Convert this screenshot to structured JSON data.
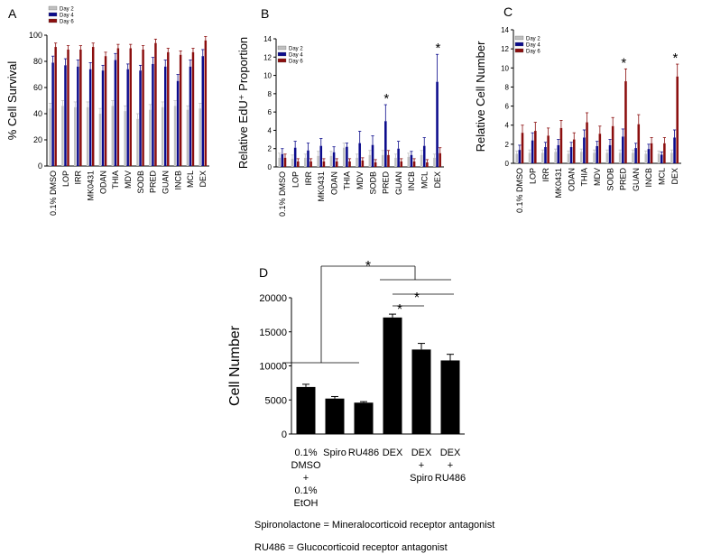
{
  "colors": {
    "day2": "#c0c0c0",
    "day4": "#0b0b8c",
    "day6": "#8b0e0e",
    "bar_d": "#000000",
    "axis": "#000000"
  },
  "chart_data": [
    {
      "panel": "A",
      "type": "bar",
      "title": "",
      "xlabel": "",
      "ylabel": "% Cell Survival",
      "ylim": [
        0,
        100
      ],
      "yticks": [
        0,
        20,
        40,
        60,
        80,
        100
      ],
      "legend": "top-left",
      "categories": [
        "0.1% DMSO",
        "LOP",
        "IRR",
        "MK0431",
        "ODAN",
        "THIA",
        "MDV",
        "SODB",
        "PRED",
        "GUAN",
        "INCB",
        "MCL",
        "DEX"
      ],
      "series": [
        {
          "name": "Day 2",
          "color": "#c0c0c0",
          "values": [
            44,
            46,
            45,
            45,
            40,
            46,
            42,
            36,
            43,
            45,
            46,
            43,
            44
          ],
          "errors": [
            4,
            4,
            4,
            4,
            4,
            4,
            4,
            4,
            4,
            4,
            4,
            3,
            4
          ]
        },
        {
          "name": "Day 4",
          "color": "#0b0b8c",
          "values": [
            79,
            77,
            76,
            74,
            73,
            81,
            74,
            73,
            78,
            76,
            65,
            76,
            84
          ],
          "errors": [
            5,
            5,
            5,
            5,
            4,
            5,
            4,
            4,
            5,
            5,
            5,
            5,
            5
          ]
        },
        {
          "name": "Day 6",
          "color": "#8b0e0e",
          "values": [
            91,
            89,
            89,
            91,
            84,
            90,
            90,
            89,
            94,
            87,
            85,
            87,
            96
          ],
          "errors": [
            3,
            3,
            3,
            3,
            3,
            3,
            3,
            3,
            3,
            3,
            3,
            3,
            3
          ]
        }
      ]
    },
    {
      "panel": "B",
      "type": "bar",
      "title": "",
      "xlabel": "",
      "ylabel": "Relative EdU⁺ Proportion",
      "ylim": [
        0,
        14
      ],
      "yticks": [
        0,
        2,
        4,
        6,
        8,
        10,
        12,
        14
      ],
      "legend": "top-left",
      "categories": [
        "0.1% DMSO",
        "LOP",
        "IRR",
        "MK0431",
        "ODAN",
        "THIA",
        "MDV",
        "SODB",
        "PRED",
        "GUAN",
        "INCB",
        "MCL",
        "DEX"
      ],
      "series": [
        {
          "name": "Day 2",
          "color": "#c0c0c0",
          "values": [
            1.0,
            0.9,
            1.0,
            1.2,
            1.2,
            2.1,
            1.0,
            1.3,
            1.3,
            1.0,
            1.1,
            1.3,
            1.0
          ],
          "errors": [
            0.5,
            0.4,
            0.4,
            0.5,
            0.5,
            0.5,
            0.4,
            0.5,
            0.5,
            0.4,
            0.4,
            0.5,
            0.4
          ]
        },
        {
          "name": "Day 4",
          "color": "#0b0b8c",
          "values": [
            1.4,
            2.1,
            1.8,
            2.3,
            1.6,
            2.2,
            2.6,
            2.4,
            5.0,
            2.0,
            1.3,
            2.3,
            9.3
          ],
          "errors": [
            0.6,
            0.7,
            0.8,
            0.8,
            0.6,
            0.4,
            1.3,
            1.0,
            1.8,
            0.8,
            0.4,
            0.9,
            3.0
          ]
        },
        {
          "name": "Day 6",
          "color": "#8b0e0e",
          "values": [
            1.0,
            0.6,
            0.6,
            0.6,
            0.6,
            0.6,
            0.7,
            0.5,
            1.3,
            0.6,
            0.6,
            0.5,
            1.5
          ],
          "errors": [
            0.4,
            0.3,
            0.3,
            0.3,
            0.3,
            0.3,
            0.3,
            0.3,
            0.5,
            0.3,
            0.3,
            0.3,
            0.6
          ]
        }
      ],
      "annotations": [
        {
          "text": "*",
          "category": "PRED"
        },
        {
          "text": "*",
          "category": "DEX"
        }
      ]
    },
    {
      "panel": "C",
      "type": "bar",
      "title": "",
      "xlabel": "",
      "ylabel": "Relative Cell Number",
      "ylim": [
        0,
        14
      ],
      "yticks": [
        0,
        2,
        4,
        6,
        8,
        10,
        12,
        14
      ],
      "legend": "top-left",
      "categories": [
        "0.1% DMSO",
        "LOP",
        "IRR",
        "MK0431",
        "ODAN",
        "THIA",
        "MDV",
        "SODB",
        "PRED",
        "GUAN",
        "INCB",
        "MCL",
        "DEX"
      ],
      "series": [
        {
          "name": "Day 2",
          "color": "#c0c0c0",
          "values": [
            1.0,
            1.1,
            1.1,
            1.2,
            1.0,
            1.2,
            1.1,
            1.1,
            1.1,
            1.1,
            1.0,
            1.0,
            1.1
          ],
          "errors": [
            0.3,
            0.3,
            0.3,
            0.3,
            0.3,
            0.3,
            0.3,
            0.3,
            0.3,
            0.3,
            0.3,
            0.3,
            0.3
          ]
        },
        {
          "name": "Day 4",
          "color": "#0b0b8c",
          "values": [
            1.4,
            2.4,
            1.7,
            1.9,
            1.7,
            2.7,
            1.8,
            1.9,
            2.8,
            1.6,
            1.5,
            0.9,
            2.7
          ],
          "errors": [
            0.5,
            0.8,
            0.5,
            0.6,
            0.5,
            0.8,
            0.5,
            0.6,
            0.8,
            0.5,
            0.5,
            0.3,
            0.8
          ]
        },
        {
          "name": "Day 6",
          "color": "#8b0e0e",
          "values": [
            3.2,
            3.4,
            2.9,
            3.7,
            2.5,
            4.3,
            3.1,
            3.9,
            8.6,
            4.1,
            2.1,
            2.1,
            9.1
          ],
          "errors": [
            0.8,
            0.9,
            0.8,
            0.8,
            0.7,
            1.0,
            0.8,
            0.9,
            1.3,
            1.0,
            0.6,
            0.6,
            1.3
          ]
        }
      ],
      "annotations": [
        {
          "text": "*",
          "category": "PRED"
        },
        {
          "text": "*",
          "category": "DEX"
        }
      ]
    },
    {
      "panel": "D",
      "type": "bar",
      "title": "",
      "xlabel": "",
      "ylabel": "Cell Number",
      "ylim": [
        0,
        20000
      ],
      "yticks": [
        0,
        5000,
        10000,
        15000,
        20000
      ],
      "categories": [
        "0.1% DMSO + 0.1% EtOH",
        "Spiro",
        "RU486",
        "DEX",
        "DEX + Spiro",
        "DEX + RU486"
      ],
      "category_lines": [
        [
          "0.1%",
          "DMSO",
          "+",
          "0.1%",
          "EtOH"
        ],
        [
          "Spiro"
        ],
        [
          "RU486"
        ],
        [
          "DEX"
        ],
        [
          "DEX",
          "+",
          "Spiro"
        ],
        [
          "DEX",
          "+",
          "RU486"
        ]
      ],
      "values": [
        6900,
        5200,
        4600,
        17100,
        12400,
        10800
      ],
      "errors": [
        400,
        300,
        150,
        500,
        900,
        900
      ],
      "annotations": [
        {
          "text": "*",
          "from": "0.1% DMSO + 0.1% EtOH / Spiro / RU486",
          "to": "DEX / DEX + Spiro / DEX + RU486"
        },
        {
          "text": "*",
          "from": "DEX",
          "to": "DEX + Spiro"
        },
        {
          "text": "*",
          "from": "DEX",
          "to": "DEX + RU486"
        }
      ]
    }
  ],
  "notes": [
    "Spironolactone = Mineralocorticoid receptor antagonist",
    "RU486 = Glucocorticoid receptor antagonist"
  ]
}
